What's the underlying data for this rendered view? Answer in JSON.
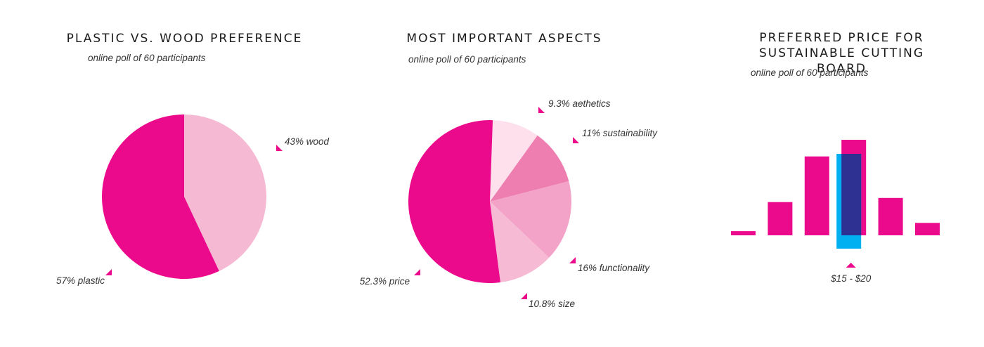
{
  "colors": {
    "magenta": "#ec0a8c",
    "light_pink": "#f6b9d3",
    "pale_pink": "#fde0ec",
    "medium_pink": "#ef7eb0",
    "soft_pink": "#f3a3c7",
    "pie2_size": "#f6bad4",
    "blue": "#00b0f0",
    "navy": "#2e3192"
  },
  "chart_data": [
    {
      "type": "pie",
      "title": "PLASTIC VS. WOOD PREFERENCE",
      "subtitle": "online poll of 60 participants",
      "slices": [
        {
          "name": "wood",
          "value": 43,
          "label": "43% wood",
          "color": "#f6b9d3"
        },
        {
          "name": "plastic",
          "value": 57,
          "label": "57% plastic",
          "color": "#ec0a8c"
        }
      ]
    },
    {
      "type": "pie",
      "title": "MOST IMPORTANT ASPECTS",
      "subtitle": "online poll of 60 participants",
      "slices": [
        {
          "name": "aethetics",
          "value": 9.3,
          "label": "9.3% aethetics",
          "color": "#fde0ec"
        },
        {
          "name": "sustainability",
          "value": 11,
          "label": "11% sustainability",
          "color": "#ef7eb0"
        },
        {
          "name": "functionality",
          "value": 16,
          "label": "16% functionality",
          "color": "#f3a3c7"
        },
        {
          "name": "size",
          "value": 10.8,
          "label": "10.8% size",
          "color": "#f6bad4"
        },
        {
          "name": "price",
          "value": 52.3,
          "label": "52.3% price",
          "color": "#ec0a8c"
        }
      ]
    },
    {
      "type": "bar",
      "title": "PREFERRED PRICE FOR SUSTAINABLE CUTTING BOARD",
      "subtitle": "online poll of 60 participants",
      "values": [
        1,
        8,
        19,
        23,
        9,
        3
      ],
      "highlight_index": 3,
      "highlight_label": "$15 - $20",
      "ylim": [
        0,
        23
      ],
      "xlabel": "",
      "ylabel": ""
    }
  ]
}
